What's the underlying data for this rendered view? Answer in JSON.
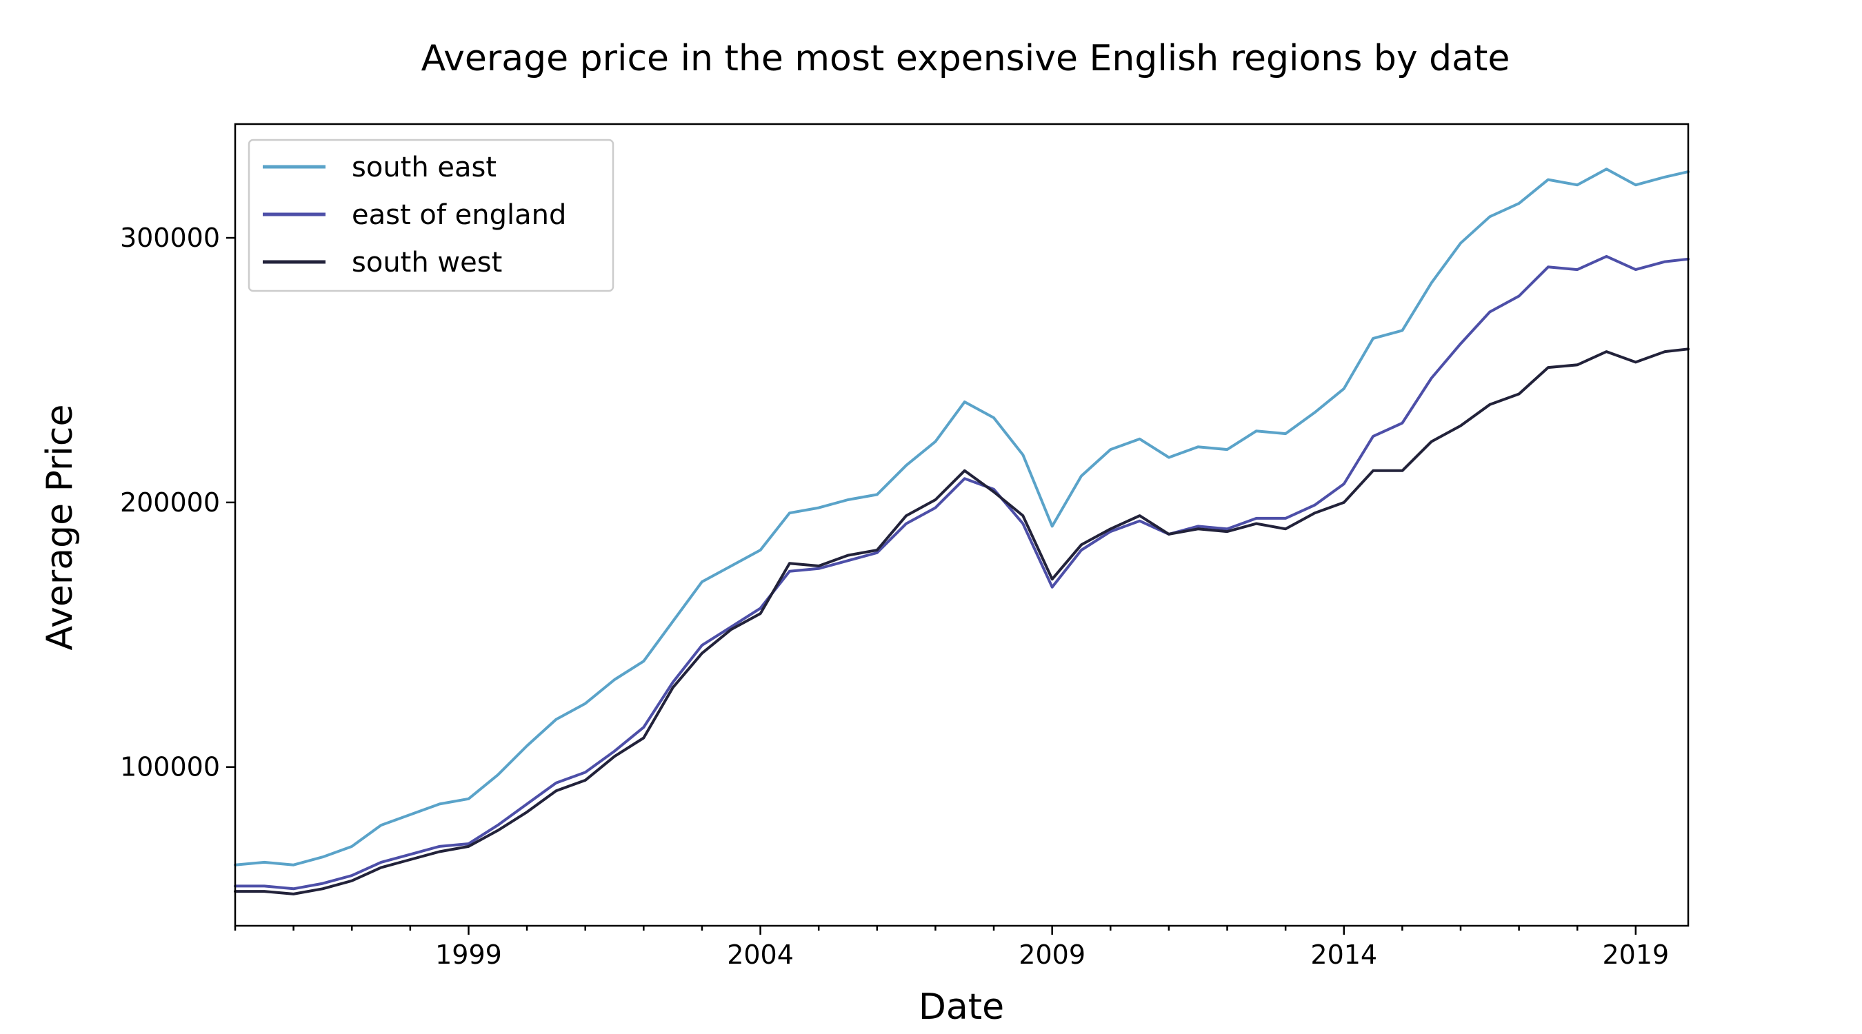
{
  "chart_data": {
    "type": "line",
    "title": "Average price in the most expensive English regions by date",
    "xlabel": "Date",
    "ylabel": "Average Price",
    "xlim": [
      1995.0,
      2019.9
    ],
    "ylim": [
      40000,
      343000
    ],
    "x_ticks": [
      1999,
      2004,
      2009,
      2014,
      2019
    ],
    "y_ticks": [
      100000,
      200000,
      300000
    ],
    "grid": false,
    "legend_position": "top-left",
    "x": [
      1995.0,
      1995.5,
      1996.0,
      1996.5,
      1997.0,
      1997.5,
      1998.0,
      1998.5,
      1999.0,
      1999.5,
      2000.0,
      2000.5,
      2001.0,
      2001.5,
      2002.0,
      2002.5,
      2003.0,
      2003.5,
      2004.0,
      2004.5,
      2005.0,
      2005.5,
      2006.0,
      2006.5,
      2007.0,
      2007.5,
      2008.0,
      2008.5,
      2009.0,
      2009.5,
      2010.0,
      2010.5,
      2011.0,
      2011.5,
      2012.0,
      2012.5,
      2013.0,
      2013.5,
      2014.0,
      2014.5,
      2015.0,
      2015.5,
      2016.0,
      2016.5,
      2017.0,
      2017.5,
      2018.0,
      2018.5,
      2019.0,
      2019.5,
      2019.9
    ],
    "series": [
      {
        "name": "south east",
        "color": "#5aa3c9",
        "values": [
          63000,
          64000,
          63000,
          66000,
          70000,
          78000,
          82000,
          86000,
          88000,
          97000,
          108000,
          118000,
          124000,
          133000,
          140000,
          155000,
          170000,
          176000,
          182000,
          196000,
          198000,
          201000,
          203000,
          214000,
          223000,
          238000,
          232000,
          218000,
          191000,
          210000,
          220000,
          224000,
          217000,
          221000,
          220000,
          227000,
          226000,
          234000,
          243000,
          262000,
          265000,
          283000,
          298000,
          308000,
          313000,
          322000,
          320000,
          326000,
          320000,
          323000,
          325000
        ]
      },
      {
        "name": "east of england",
        "color": "#4d4fa8",
        "values": [
          55000,
          55000,
          54000,
          56000,
          59000,
          64000,
          67000,
          70000,
          71000,
          78000,
          86000,
          94000,
          98000,
          106000,
          115000,
          132000,
          146000,
          153000,
          160000,
          174000,
          175000,
          178000,
          181000,
          192000,
          198000,
          209000,
          205000,
          192000,
          168000,
          182000,
          189000,
          193000,
          188000,
          191000,
          190000,
          194000,
          194000,
          199000,
          207000,
          225000,
          230000,
          247000,
          260000,
          272000,
          278000,
          289000,
          288000,
          293000,
          288000,
          291000,
          292000
        ]
      },
      {
        "name": "south west",
        "color": "#22223a",
        "values": [
          53000,
          53000,
          52000,
          54000,
          57000,
          62000,
          65000,
          68000,
          70000,
          76000,
          83000,
          91000,
          95000,
          104000,
          111000,
          130000,
          143000,
          152000,
          158000,
          177000,
          176000,
          180000,
          182000,
          195000,
          201000,
          212000,
          204000,
          195000,
          171000,
          184000,
          190000,
          195000,
          188000,
          190000,
          189000,
          192000,
          190000,
          196000,
          200000,
          212000,
          212000,
          223000,
          229000,
          237000,
          241000,
          251000,
          252000,
          257000,
          253000,
          257000,
          258000
        ]
      }
    ]
  }
}
